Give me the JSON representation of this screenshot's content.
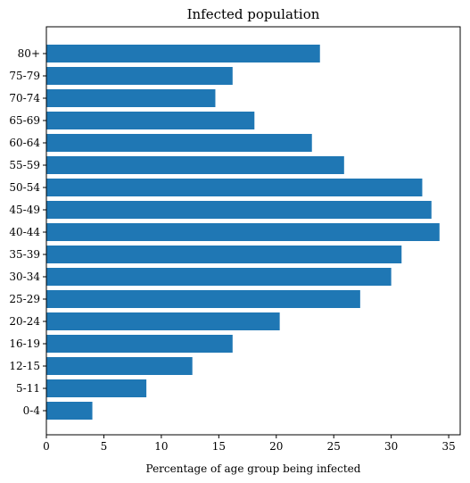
{
  "chart_data": {
    "type": "bar",
    "orientation": "horizontal",
    "title": "Infected population",
    "xlabel": "Percentage of age group being infected",
    "ylabel": "",
    "xlim": [
      0,
      36
    ],
    "xticks": [
      0,
      5,
      10,
      15,
      20,
      25,
      30,
      35
    ],
    "categories": [
      "0-4",
      "5-11",
      "12-15",
      "16-19",
      "20-24",
      "25-29",
      "30-34",
      "35-39",
      "40-44",
      "45-49",
      "50-54",
      "55-59",
      "60-64",
      "65-69",
      "70-74",
      "75-79",
      "80+"
    ],
    "values": [
      4.0,
      8.7,
      12.7,
      16.2,
      20.3,
      27.3,
      30.0,
      30.9,
      34.2,
      33.5,
      32.7,
      25.9,
      23.1,
      18.1,
      14.7,
      16.2,
      23.8
    ],
    "bar_color": "#1f77b4",
    "grid": false
  }
}
